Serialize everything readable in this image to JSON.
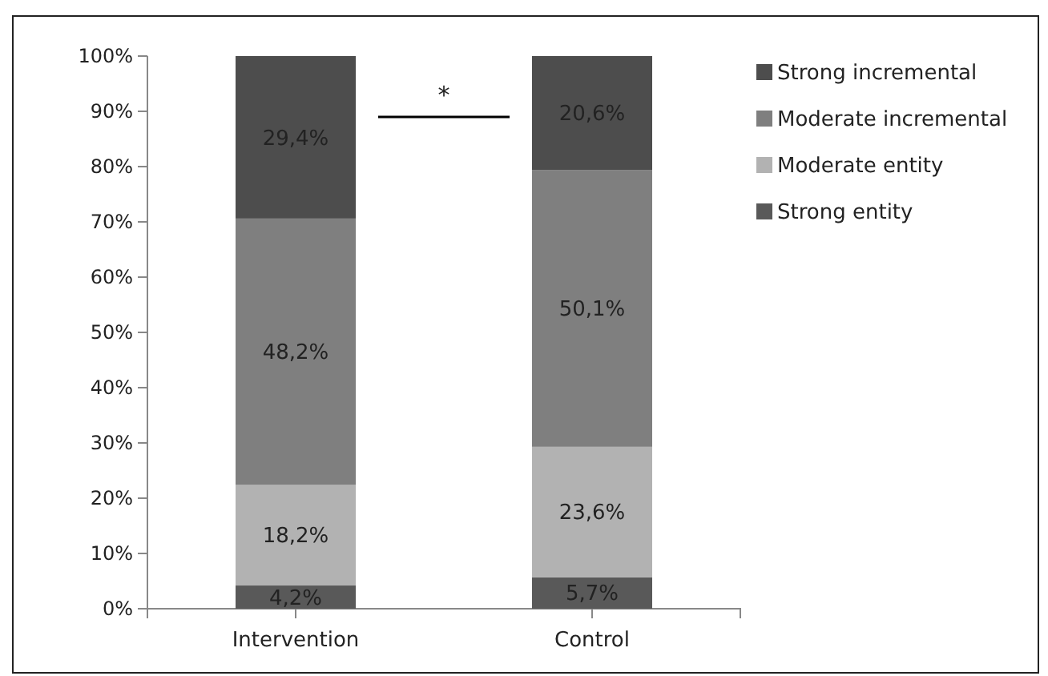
{
  "chart_data": {
    "type": "bar",
    "stacked": true,
    "categories": [
      "Intervention",
      "Control"
    ],
    "series": [
      {
        "name": "Strong entity",
        "color": "#595959",
        "values": [
          4.2,
          5.7
        ],
        "value_labels": [
          "4,2%",
          "5,7%"
        ]
      },
      {
        "name": "Moderate entity",
        "color": "#b2b2b2",
        "values": [
          18.2,
          23.6
        ],
        "value_labels": [
          "18,2%",
          "23,6%"
        ]
      },
      {
        "name": "Moderate incremental",
        "color": "#7f7f7f",
        "values": [
          48.2,
          50.1
        ],
        "value_labels": [
          "48,2%",
          "50,1%"
        ]
      },
      {
        "name": "Strong incremental",
        "color": "#4d4d4d",
        "values": [
          29.4,
          20.6
        ],
        "value_labels": [
          "29,4%",
          "20,6%"
        ]
      }
    ],
    "ylim": [
      0,
      100
    ],
    "yticks": [
      {
        "value": 0,
        "label": "0%"
      },
      {
        "value": 10,
        "label": "10%"
      },
      {
        "value": 20,
        "label": "20%"
      },
      {
        "value": 30,
        "label": "30%"
      },
      {
        "value": 40,
        "label": "40%"
      },
      {
        "value": 50,
        "label": "50%"
      },
      {
        "value": 60,
        "label": "60%"
      },
      {
        "value": 70,
        "label": "70%"
      },
      {
        "value": 80,
        "label": "80%"
      },
      {
        "value": 90,
        "label": "90%"
      },
      {
        "value": 100,
        "label": "100%"
      }
    ],
    "grid": false,
    "legend": "top right",
    "annotations": [
      "*"
    ]
  }
}
